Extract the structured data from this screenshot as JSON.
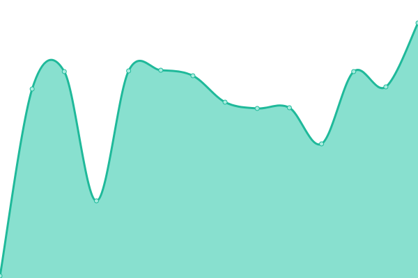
{
  "chart_data": {
    "type": "area",
    "values": [
      3,
      272,
      297,
      111,
      298,
      299,
      291,
      253,
      244,
      245,
      193,
      297,
      275,
      367
    ],
    "ylim": [
      0,
      400
    ],
    "line_color": "#1fb99a",
    "fill_color": "#88e0cf",
    "marker_color": "#a8ecdf"
  }
}
